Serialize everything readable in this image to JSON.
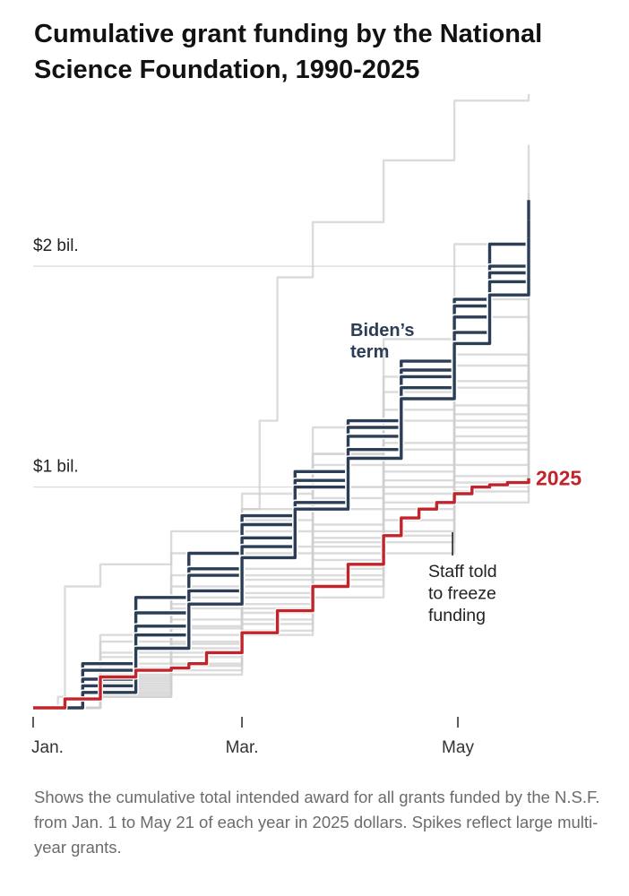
{
  "title": "Cumulative grant funding by the National Science Foundation, 1990-2025",
  "caption": "Shows the cumulative total intended award for all grants funded by the N.S.F. from Jan. 1 to May 21 of each year in 2025 dollars. Spikes reflect large multi-year grants.",
  "colors": {
    "other_years": "#cfcfcf",
    "biden_term": "#2b3e55",
    "year_2025": "#c0252b",
    "gridline": "#d9d9d9"
  },
  "chart_data": {
    "type": "line",
    "title": "Cumulative grant funding by the National Science Foundation, 1990-2025",
    "xlabel": "",
    "ylabel": "",
    "x_unit": "day of year",
    "xlim": [
      1,
      141
    ],
    "ylim": [
      0,
      2.8
    ],
    "y_unit": "billion 2025 dollars",
    "grid": "horizontal",
    "legend": "direct labels",
    "x_ticks": [
      {
        "value": 1,
        "label": "Jan."
      },
      {
        "value": 60,
        "label": "Mar."
      },
      {
        "value": 121,
        "label": "May"
      }
    ],
    "y_ticks": [
      {
        "value": 1,
        "label": "$1 bil."
      },
      {
        "value": 2,
        "label": "$2 bil."
      }
    ],
    "labels": {
      "biden": "Biden’s term",
      "year_2025": "2025",
      "annotation": "Staff told to freeze funding"
    },
    "annotation_x": 120,
    "series_2025": {
      "name": "2025",
      "x": [
        1,
        10,
        20,
        30,
        40,
        45,
        50,
        60,
        70,
        80,
        90,
        100,
        105,
        110,
        115,
        120,
        125,
        130,
        135,
        141
      ],
      "y": [
        0.0,
        0.04,
        0.14,
        0.17,
        0.18,
        0.2,
        0.25,
        0.34,
        0.44,
        0.55,
        0.65,
        0.78,
        0.86,
        0.9,
        0.93,
        0.97,
        1.0,
        1.01,
        1.02,
        1.04
      ]
    },
    "series_biden": [
      {
        "x": [
          1,
          15,
          30,
          45,
          60,
          75,
          90,
          105,
          120,
          130,
          141
        ],
        "y": [
          0.0,
          0.2,
          0.5,
          0.7,
          0.87,
          1.07,
          1.3,
          1.57,
          1.85,
          2.1,
          2.3
        ]
      },
      {
        "x": [
          1,
          15,
          30,
          45,
          60,
          75,
          90,
          105,
          120,
          130,
          141
        ],
        "y": [
          0.0,
          0.17,
          0.43,
          0.63,
          0.83,
          1.03,
          1.27,
          1.53,
          1.82,
          2.0,
          2.15
        ]
      },
      {
        "x": [
          1,
          15,
          30,
          45,
          60,
          75,
          90,
          105,
          120,
          130,
          141
        ],
        "y": [
          0.0,
          0.13,
          0.37,
          0.6,
          0.77,
          1.0,
          1.23,
          1.5,
          1.77,
          1.97,
          2.21
        ]
      },
      {
        "x": [
          1,
          15,
          30,
          45,
          60,
          75,
          90,
          105,
          120,
          130,
          141
        ],
        "y": [
          0.0,
          0.1,
          0.33,
          0.53,
          0.73,
          0.93,
          1.17,
          1.45,
          1.7,
          1.93,
          2.08
        ]
      },
      {
        "x": [
          1,
          15,
          30,
          45,
          60,
          75,
          90,
          105,
          120,
          130,
          141
        ],
        "y": [
          0.0,
          0.07,
          0.27,
          0.47,
          0.68,
          0.9,
          1.13,
          1.4,
          1.65,
          1.87,
          2.13
        ]
      }
    ],
    "series_other": [
      {
        "x": [
          1,
          20,
          40,
          60,
          65,
          70,
          80,
          100,
          120,
          141
        ],
        "y": [
          0.0,
          0.33,
          0.7,
          0.9,
          1.3,
          1.95,
          2.2,
          2.48,
          2.75,
          2.98
        ]
      },
      {
        "x": [
          1,
          20,
          40,
          60,
          80,
          100,
          120,
          141
        ],
        "y": [
          0.0,
          0.3,
          0.6,
          0.9,
          1.27,
          1.67,
          2.1,
          2.55
        ]
      },
      {
        "x": [
          1,
          20,
          40,
          60,
          80,
          100,
          120,
          141
        ],
        "y": [
          0.0,
          0.23,
          0.5,
          0.8,
          1.1,
          1.43,
          1.77,
          2.33
        ]
      },
      {
        "x": [
          1,
          20,
          40,
          60,
          80,
          100,
          120,
          141
        ],
        "y": [
          0.0,
          0.2,
          0.47,
          0.73,
          1.0,
          1.3,
          1.6,
          1.9
        ]
      },
      {
        "x": [
          1,
          20,
          40,
          60,
          80,
          100,
          120,
          141
        ],
        "y": [
          0.0,
          0.17,
          0.4,
          0.63,
          0.9,
          1.17,
          1.45,
          1.7
        ]
      },
      {
        "x": [
          1,
          20,
          40,
          60,
          80,
          100,
          120,
          141
        ],
        "y": [
          0.0,
          0.15,
          0.37,
          0.6,
          0.83,
          1.1,
          1.37,
          1.63
        ]
      },
      {
        "x": [
          1,
          20,
          40,
          60,
          80,
          100,
          120,
          141
        ],
        "y": [
          0.0,
          0.13,
          0.33,
          0.55,
          0.77,
          1.03,
          1.3,
          1.57
        ]
      },
      {
        "x": [
          1,
          20,
          40,
          60,
          80,
          100,
          120,
          141
        ],
        "y": [
          0.0,
          0.12,
          0.3,
          0.5,
          0.73,
          0.97,
          1.23,
          1.5
        ]
      },
      {
        "x": [
          1,
          20,
          40,
          60,
          80,
          100,
          120,
          141
        ],
        "y": [
          0.0,
          0.1,
          0.27,
          0.47,
          0.67,
          0.9,
          1.17,
          1.43
        ]
      },
      {
        "x": [
          1,
          20,
          40,
          60,
          80,
          100,
          120,
          141
        ],
        "y": [
          0.0,
          0.08,
          0.23,
          0.43,
          0.63,
          0.85,
          1.1,
          1.37
        ]
      },
      {
        "x": [
          1,
          20,
          40,
          60,
          80,
          100,
          120,
          141
        ],
        "y": [
          0.0,
          0.07,
          0.2,
          0.4,
          0.6,
          0.8,
          1.05,
          1.3
        ]
      },
      {
        "x": [
          1,
          20,
          40,
          60,
          80,
          100,
          120,
          141
        ],
        "y": [
          0.0,
          0.05,
          0.17,
          0.35,
          0.55,
          0.75,
          0.98,
          1.23
        ]
      },
      {
        "x": [
          1,
          20,
          40,
          60,
          80,
          100,
          120,
          141
        ],
        "y": [
          0.0,
          0.05,
          0.15,
          0.33,
          0.5,
          0.7,
          0.93,
          1.17
        ]
      },
      {
        "x": [
          1,
          20,
          40,
          60,
          80,
          100,
          120,
          141
        ],
        "y": [
          0.0,
          0.18,
          0.45,
          0.7,
          0.95,
          1.2,
          1.48,
          1.78
        ]
      },
      {
        "x": [
          1,
          20,
          40,
          60,
          80,
          100,
          120,
          141
        ],
        "y": [
          0.0,
          0.14,
          0.36,
          0.58,
          0.8,
          1.07,
          1.33,
          1.6
        ]
      },
      {
        "x": [
          1,
          20,
          40,
          60,
          80,
          100,
          120,
          141
        ],
        "y": [
          0.0,
          0.11,
          0.29,
          0.52,
          0.75,
          1.0,
          1.27,
          1.53
        ]
      },
      {
        "x": [
          1,
          20,
          40,
          60,
          80,
          100,
          120,
          141
        ],
        "y": [
          0.0,
          0.09,
          0.25,
          0.45,
          0.7,
          0.93,
          1.2,
          1.47
        ]
      },
      {
        "x": [
          1,
          20,
          40,
          60,
          80,
          100,
          120,
          141
        ],
        "y": [
          0.0,
          0.25,
          0.55,
          0.85,
          1.15,
          1.5,
          1.85,
          2.1
        ]
      },
      {
        "x": [
          1,
          8,
          10,
          20,
          40,
          60,
          80,
          100,
          120,
          141
        ],
        "y": [
          0.0,
          0.05,
          0.55,
          0.65,
          0.8,
          0.97,
          1.15,
          1.35,
          1.55,
          1.77
        ]
      },
      {
        "x": [
          1,
          20,
          40,
          60,
          80,
          100,
          120,
          141
        ],
        "y": [
          0.0,
          0.06,
          0.19,
          0.38,
          0.58,
          0.78,
          1.02,
          1.27
        ]
      }
    ]
  }
}
